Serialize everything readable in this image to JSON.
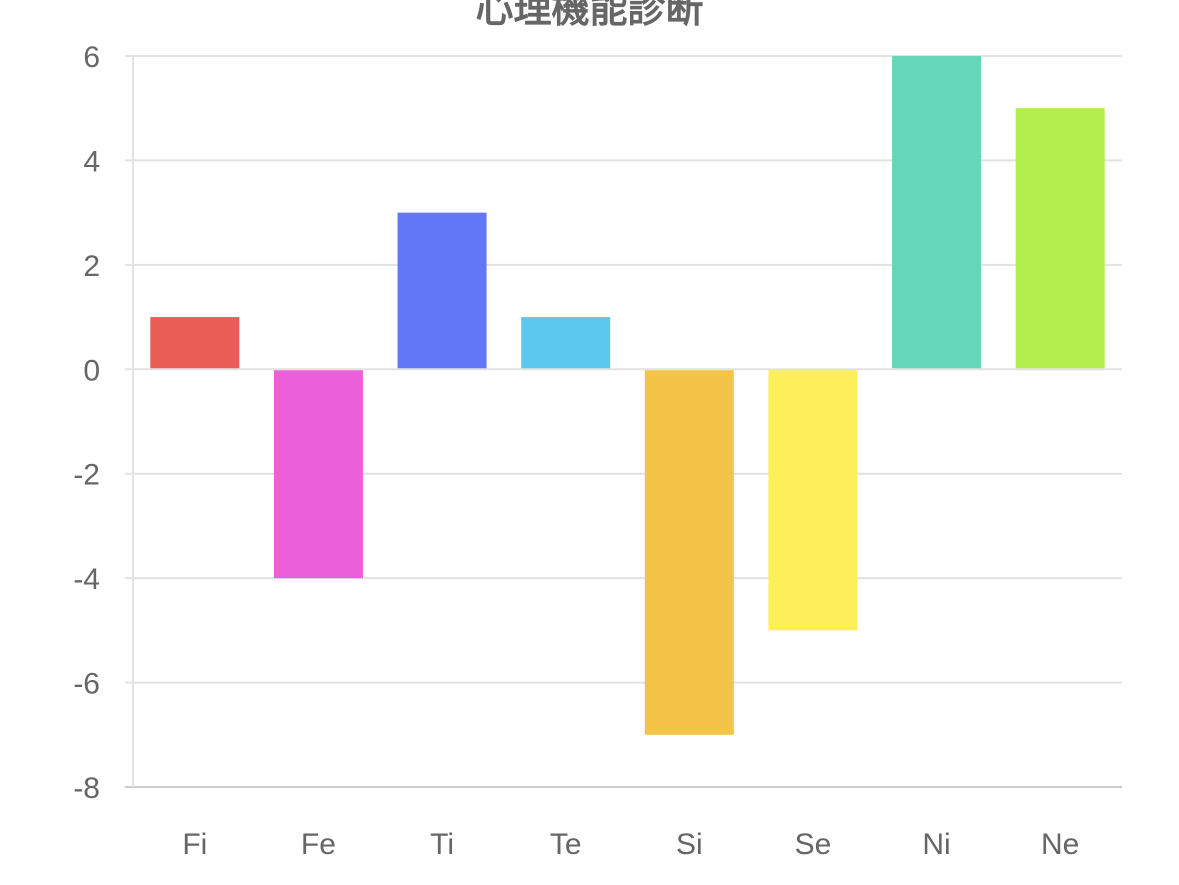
{
  "chart_data": {
    "type": "bar",
    "title": "心理機能診断",
    "categories": [
      "Fi",
      "Fe",
      "Ti",
      "Te",
      "Si",
      "Se",
      "Ni",
      "Ne"
    ],
    "values": [
      1,
      -4,
      3,
      1,
      -7,
      -5,
      6,
      5
    ],
    "colors": [
      "#ea5d57",
      "#ec5fdb",
      "#6177f5",
      "#5cc8ed",
      "#f4c447",
      "#fcef5a",
      "#65d6b8",
      "#b3ef4c"
    ],
    "xlabel": "",
    "ylabel": "",
    "ylim": [
      -8,
      6
    ],
    "yticks": [
      6,
      4,
      2,
      0,
      -2,
      -4,
      -6,
      -8
    ],
    "grid": true,
    "legend": "none"
  }
}
